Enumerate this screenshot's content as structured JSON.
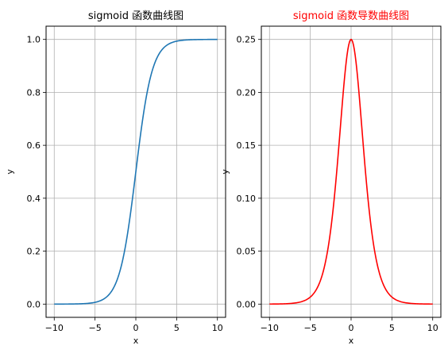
{
  "chart_data": [
    {
      "type": "line",
      "title": "sigmoid 函数曲线图",
      "title_color": "#000000",
      "xlabel": "x",
      "ylabel": "y",
      "xlim": [
        -11,
        11
      ],
      "ylim": [
        -0.05,
        1.05
      ],
      "x_ticks": [
        -10,
        -5,
        0,
        5,
        10
      ],
      "y_ticks": [
        0.0,
        0.2,
        0.4,
        0.6,
        0.8,
        1.0
      ],
      "x_tick_labels": [
        "−10",
        "−5",
        "0",
        "5",
        "10"
      ],
      "y_tick_labels": [
        "0.0",
        "0.2",
        "0.4",
        "0.6",
        "0.8",
        "1.0"
      ],
      "grid": true,
      "series": [
        {
          "function": "sigmoid",
          "color": "#1f77b4",
          "x_range": [
            -10,
            10
          ],
          "x": [
            -10,
            -8,
            -6,
            -5,
            -4,
            -3,
            -2,
            -1,
            0,
            1,
            2,
            3,
            4,
            5,
            6,
            8,
            10
          ],
          "y": [
            0.0,
            0.0003,
            0.0025,
            0.0067,
            0.018,
            0.0474,
            0.1192,
            0.2689,
            0.5,
            0.7311,
            0.8808,
            0.9526,
            0.982,
            0.9933,
            0.9975,
            0.9997,
            1.0
          ]
        }
      ]
    },
    {
      "type": "line",
      "title": "sigmoid 函数导数曲线图",
      "title_color": "#ff0000",
      "xlabel": "x",
      "ylabel": "y",
      "xlim": [
        -11,
        11
      ],
      "ylim": [
        -0.0125,
        0.2625
      ],
      "x_ticks": [
        -10,
        -5,
        0,
        5,
        10
      ],
      "y_ticks": [
        0.0,
        0.05,
        0.1,
        0.15,
        0.2,
        0.25
      ],
      "x_tick_labels": [
        "−10",
        "−5",
        "0",
        "5",
        "10"
      ],
      "y_tick_labels": [
        "0.00",
        "0.05",
        "0.10",
        "0.15",
        "0.20",
        "0.25"
      ],
      "grid": true,
      "series": [
        {
          "function": "sigmoid_derivative",
          "color": "#ff0000",
          "x_range": [
            -10,
            10
          ],
          "x": [
            -10,
            -8,
            -6,
            -5,
            -4,
            -3,
            -2,
            -1,
            0,
            1,
            2,
            3,
            4,
            5,
            6,
            8,
            10
          ],
          "y": [
            0.0,
            0.0003,
            0.0025,
            0.0066,
            0.0177,
            0.0452,
            0.105,
            0.1966,
            0.25,
            0.1966,
            0.105,
            0.0452,
            0.0177,
            0.0066,
            0.0025,
            0.0003,
            0.0
          ]
        }
      ]
    }
  ]
}
